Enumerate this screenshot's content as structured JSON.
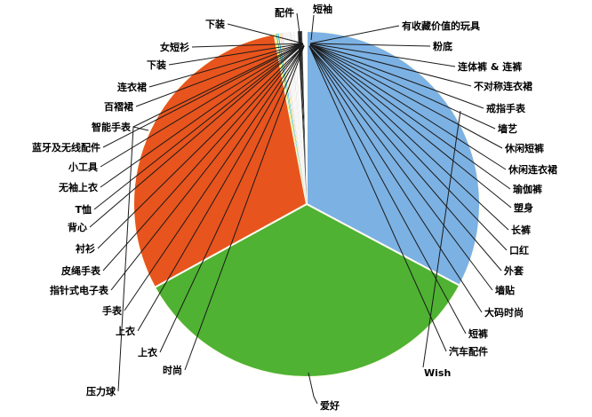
{
  "chart_data": {
    "type": "pie",
    "title": "",
    "legend": "none",
    "background": "#ffffff",
    "connector_color": "#1a1a1a",
    "major_slices": [
      {
        "label": "Wish",
        "value": 32.8,
        "color": "#7CB1E3"
      },
      {
        "label": "爱好",
        "value": 34.2,
        "color": "#4FB232"
      },
      {
        "label": "压力球",
        "value": 30.0,
        "color": "#E8541D"
      }
    ],
    "minor_slices": [
      {
        "label": "配件",
        "value": 0.081
      },
      {
        "label": "短袖",
        "value": 0.081
      },
      {
        "label": "下装",
        "value": 0.081
      },
      {
        "label": "女短衫",
        "value": 0.081
      },
      {
        "label": "下装",
        "value": 0.081
      },
      {
        "label": "连衣裙",
        "value": 0.081
      },
      {
        "label": "百褶裙",
        "value": 0.081
      },
      {
        "label": "智能手表",
        "value": 0.081
      },
      {
        "label": "蓝牙及无线配件",
        "value": 0.081
      },
      {
        "label": "小工具",
        "value": 0.081
      },
      {
        "label": "无袖上衣",
        "value": 0.081
      },
      {
        "label": "T恤",
        "value": 0.081
      },
      {
        "label": "背心",
        "value": 0.081
      },
      {
        "label": "衬衫",
        "value": 0.081
      },
      {
        "label": "皮绳手表",
        "value": 0.081
      },
      {
        "label": "指针式电子表",
        "value": 0.081
      },
      {
        "label": "手表",
        "value": 0.081
      },
      {
        "label": "上衣",
        "value": 0.081
      },
      {
        "label": "上衣",
        "value": 0.081
      },
      {
        "label": "时尚",
        "value": 0.081
      },
      {
        "label": "有收藏价值的玩具",
        "value": 0.081
      },
      {
        "label": "粉底",
        "value": 0.081
      },
      {
        "label": "连体裤 & 连裤",
        "value": 0.081
      },
      {
        "label": "不对称连衣裙",
        "value": 0.081
      },
      {
        "label": "戒指手表",
        "value": 0.081
      },
      {
        "label": "墙艺",
        "value": 0.081
      },
      {
        "label": "休闲短裤",
        "value": 0.081
      },
      {
        "label": "休闲连衣裙",
        "value": 0.081
      },
      {
        "label": "瑜伽裤",
        "value": 0.081
      },
      {
        "label": "塑身",
        "value": 0.081
      },
      {
        "label": "长裤",
        "value": 0.081
      },
      {
        "label": "口红",
        "value": 0.081
      },
      {
        "label": "外套",
        "value": 0.081
      },
      {
        "label": "墙贴",
        "value": 0.081
      },
      {
        "label": "大码时尚",
        "value": 0.081
      },
      {
        "label": "短裤",
        "value": 0.081
      },
      {
        "label": "汽车配件",
        "value": 0.081
      }
    ],
    "minor_band_colors": [
      "#FFF200",
      "#FFFFFF",
      "#39B54A",
      "#FFFFFF",
      "#00AEEF",
      "#FFFFFF",
      "#FFD966",
      "#FFFFFF",
      "#F4B6C2",
      "#FFFFFF",
      "#E2EFDA",
      "#FFFFFF",
      "#DDEBF7",
      "#FFFFFF",
      "#FCE4D6",
      "#FFFFFF",
      "#EDEDED",
      "#FFFFFF",
      "#D9D9D9",
      "#FFFFFF",
      "#F2F2F2",
      "#FFFFFF",
      "#E7E6E6",
      "#FFFFFF",
      "#FAFAFA",
      "#FFFFFF",
      "#EFEFEF",
      "#222222",
      "#111111",
      "#333333",
      "#111111",
      "#444444",
      "#FFFFFF",
      "#FFFFFF",
      "#FFFFFF",
      "#FFFFFF",
      "#FFFFFF"
    ],
    "layout_hints": {
      "center": [
        345,
        230
      ],
      "radius": 195,
      "start_angle_deg_clockwise_from_top": 0,
      "slice_border_color": "#FFFDF2"
    }
  }
}
